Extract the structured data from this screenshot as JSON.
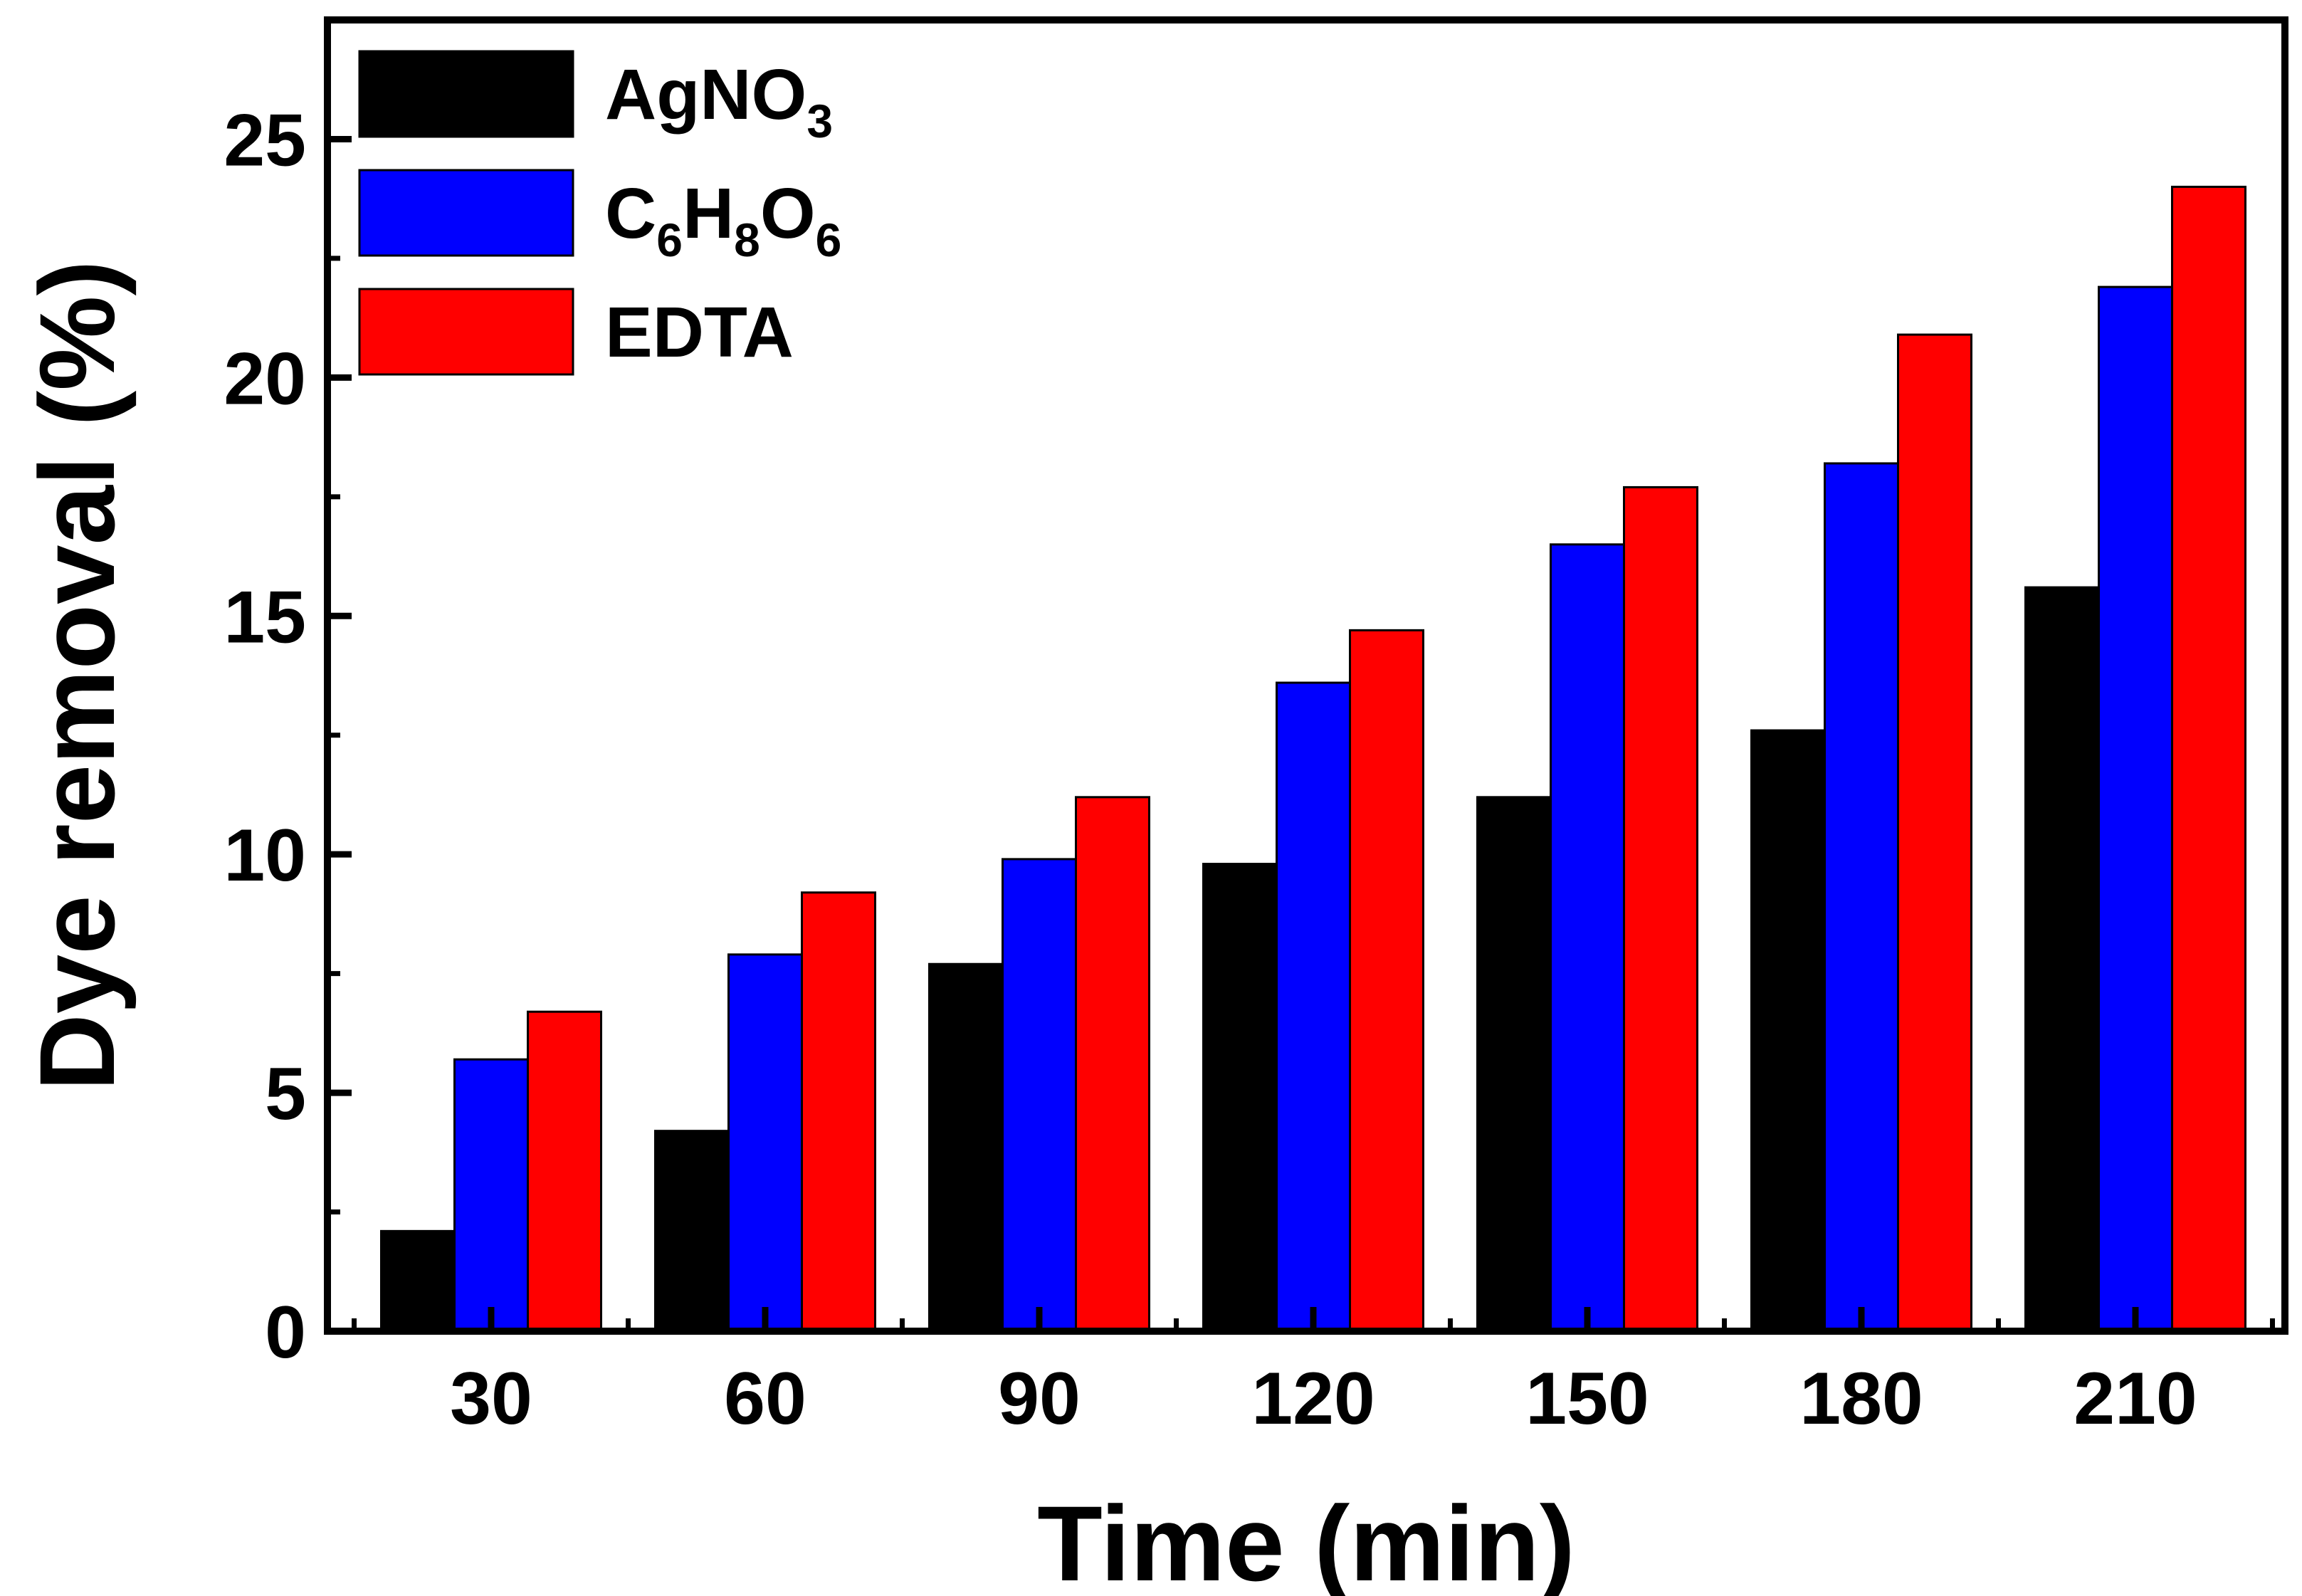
{
  "chart_data": {
    "type": "bar",
    "title": "",
    "xlabel": "Time (min)",
    "ylabel": "Dye removal (%)",
    "categories": [
      "30",
      "60",
      "90",
      "120",
      "150",
      "180",
      "210"
    ],
    "ylim": [
      0,
      27.5
    ],
    "yticks": [
      "0",
      "5",
      "10",
      "15",
      "20",
      "25"
    ],
    "grid": false,
    "legend_position": "top-left",
    "series": [
      {
        "name": "AgNO3",
        "label_parts": [
          {
            "t": "AgNO"
          },
          {
            "t": "3",
            "sub": true
          }
        ],
        "color": "#000000",
        "values": [
          2.1,
          4.2,
          7.7,
          9.8,
          11.2,
          12.6,
          15.6
        ]
      },
      {
        "name": "C6H8O6",
        "label_parts": [
          {
            "t": "C"
          },
          {
            "t": "6",
            "sub": true
          },
          {
            "t": "H"
          },
          {
            "t": "8",
            "sub": true
          },
          {
            "t": "O"
          },
          {
            "t": "6",
            "sub": true
          }
        ],
        "color": "#0000ff",
        "values": [
          5.7,
          7.9,
          9.9,
          13.6,
          16.5,
          18.2,
          21.9
        ]
      },
      {
        "name": "EDTA",
        "label_parts": [
          {
            "t": "EDTA"
          }
        ],
        "color": "#ff0000",
        "values": [
          6.7,
          9.2,
          11.2,
          14.7,
          17.7,
          20.9,
          24.0
        ]
      }
    ]
  }
}
